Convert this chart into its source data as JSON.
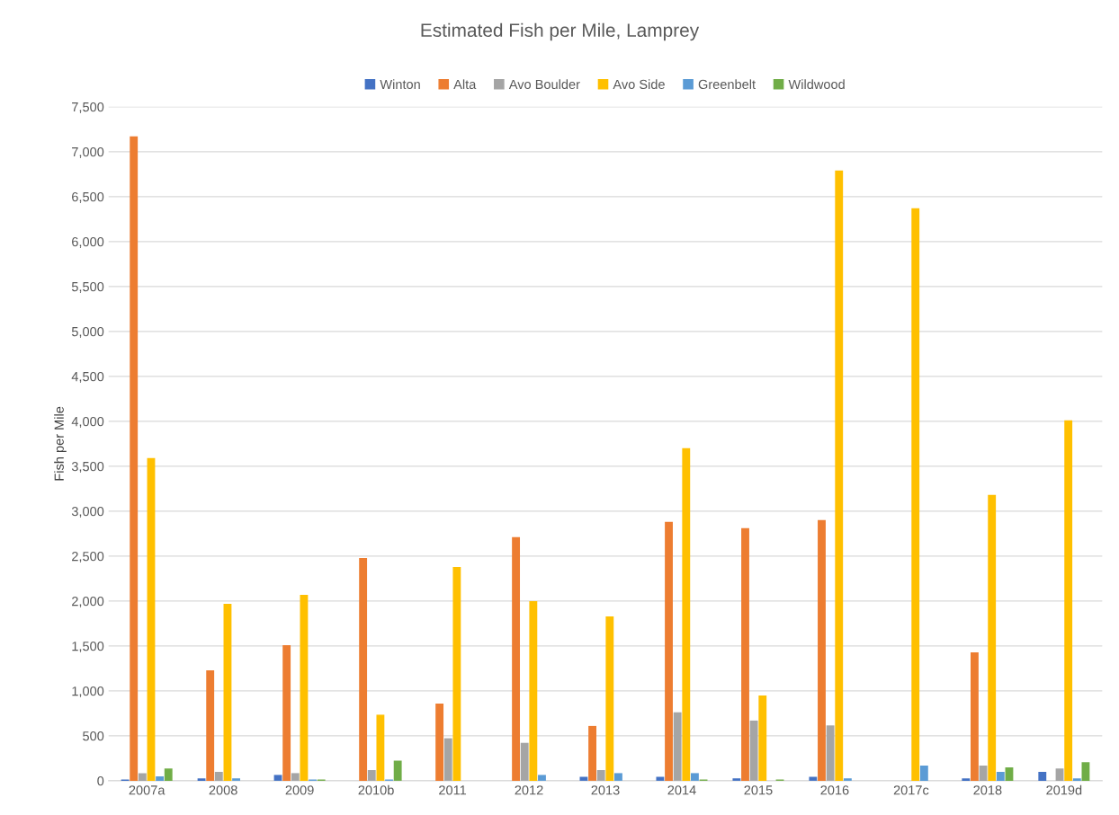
{
  "chart_data": {
    "type": "bar",
    "title": "Estimated Fish per Mile, Lamprey",
    "ylabel": "Fish per Mile",
    "categories": [
      "2007a",
      "2008",
      "2009",
      "2010b",
      "2011",
      "2012",
      "2013",
      "2014",
      "2015",
      "2016",
      "2017c",
      "2018",
      "2019d"
    ],
    "series": [
      {
        "name": "Winton",
        "color": "#4472c4",
        "values": [
          15,
          27,
          65,
          null,
          null,
          null,
          44,
          44,
          27,
          44,
          null,
          27,
          99
        ]
      },
      {
        "name": "Alta",
        "color": "#ed7d31",
        "values": [
          7170,
          1230,
          1510,
          2480,
          860,
          2710,
          610,
          2880,
          2810,
          2900,
          null,
          1430,
          null
        ]
      },
      {
        "name": "Avo Boulder",
        "color": "#a5a5a5",
        "values": [
          85,
          99,
          85,
          119,
          473,
          422,
          119,
          762,
          670,
          616,
          null,
          170,
          136
        ]
      },
      {
        "name": "Avo Side",
        "color": "#ffc000",
        "values": [
          3590,
          1970,
          2070,
          735,
          2380,
          2000,
          1830,
          3700,
          950,
          6790,
          6370,
          3180,
          4010
        ]
      },
      {
        "name": "Greenbelt",
        "color": "#5b9bd5",
        "values": [
          48,
          27,
          14,
          14,
          null,
          65,
          85,
          85,
          null,
          27,
          170,
          99,
          27
        ]
      },
      {
        "name": "Wildwood",
        "color": "#70ad47",
        "values": [
          136,
          null,
          14,
          224,
          null,
          null,
          null,
          14,
          14,
          null,
          null,
          150,
          207
        ]
      }
    ],
    "ylim": [
      0,
      7500
    ],
    "yticks": [
      0,
      {
        "value": 500,
        "label": "500"
      },
      {
        "value": 1000,
        "label": "1,000"
      },
      {
        "value": 1500,
        "label": "1,500"
      },
      {
        "value": 2000,
        "label": "2,000"
      },
      {
        "value": 2500,
        "label": "2,500"
      },
      {
        "value": 3000,
        "label": "3,000"
      },
      {
        "value": 3500,
        "label": "3,500"
      },
      {
        "value": 4000,
        "label": "4,000"
      },
      {
        "value": 4500,
        "label": "4,500"
      },
      {
        "value": 5000,
        "label": "5,000"
      },
      {
        "value": 5500,
        "label": "5,500"
      },
      {
        "value": 6000,
        "label": "6,000"
      },
      {
        "value": 6500,
        "label": "6,500"
      },
      {
        "value": 7000,
        "label": "7,000"
      },
      {
        "value": 7500,
        "label": "7,500"
      }
    ],
    "grid": "y",
    "legend": "top"
  }
}
